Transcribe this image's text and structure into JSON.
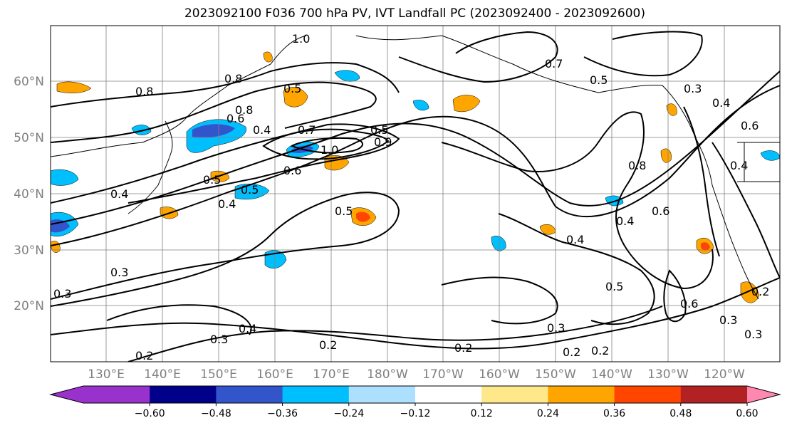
{
  "title": "2023092100 F036 700 hPa PV, IVT Landfall PC (2023092400 - 2023092600)",
  "lat_labels": [
    "60°N",
    "50°N",
    "40°N",
    "30°N",
    "20°N"
  ],
  "lon_labels": [
    "130°E",
    "140°E",
    "150°E",
    "160°E",
    "170°E",
    "180°W",
    "170°W",
    "160°W",
    "150°W",
    "140°W",
    "130°W",
    "120°W"
  ],
  "contour_labels": [
    "0.8",
    "1.0",
    "0.8",
    "0.5",
    "0.7",
    "0.5",
    "0.8",
    "0.6",
    "0.4",
    "0.7",
    "1.0",
    "0.9",
    "0.6",
    "0.5",
    "0.5",
    "0.4",
    "0.4",
    "0.5",
    "0.4",
    "0.3",
    "0.3",
    "0.4",
    "0.3",
    "0.2",
    "0.2",
    "0.2",
    "0.3",
    "0.2",
    "0.5",
    "0.4",
    "0.6",
    "0.5",
    "0.8",
    "0.4",
    "0.3",
    "0.6",
    "0.4",
    "0.6",
    "0.3",
    "0.2",
    "0.2",
    "0.3"
  ],
  "colorbar": {
    "ticks": [
      "−0.60",
      "−0.48",
      "−0.36",
      "−0.24",
      "−0.12",
      "0.12",
      "0.24",
      "0.36",
      "0.48",
      "0.60"
    ],
    "bins": [
      {
        "color": "#9932CC"
      },
      {
        "color": "#00008B"
      },
      {
        "color": "#3355CC"
      },
      {
        "color": "#00BFFF"
      },
      {
        "color": "#ADDFFF"
      },
      {
        "color": "#FFFFFF"
      },
      {
        "color": "#FFE88A"
      },
      {
        "color": "#FFA500"
      },
      {
        "color": "#FF4500"
      },
      {
        "color": "#B22222"
      },
      {
        "color": "#FF88B0"
      },
      {
        "color": "#FF88B0"
      }
    ]
  },
  "colors": {
    "positive_light": "#FFE88A",
    "positive": "#FFA500",
    "positive_strong": "#FF4500",
    "negative_light": "#ADDFFF",
    "negative": "#00BFFF",
    "negative_strong": "#3355CC",
    "negative_deep": "#00008B"
  }
}
